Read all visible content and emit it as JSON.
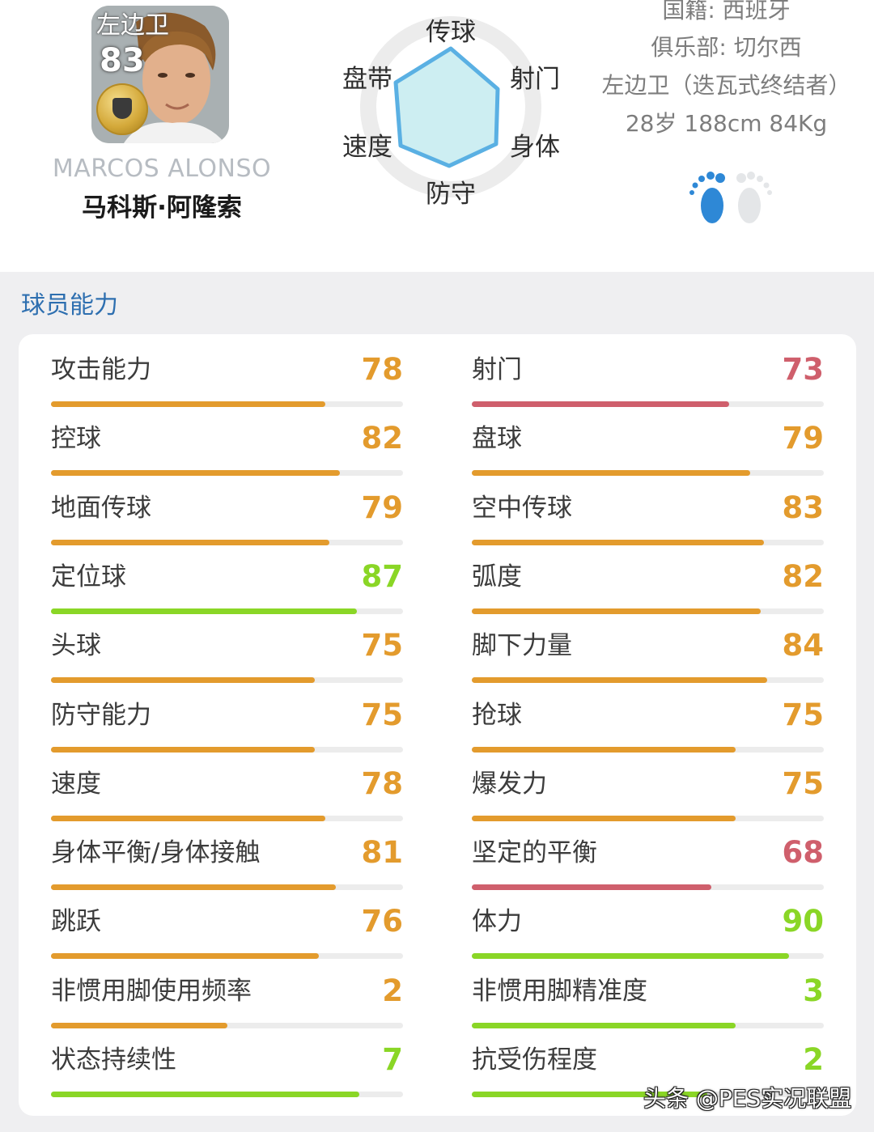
{
  "player": {
    "position": "左边卫",
    "rating": "83",
    "name_en": "MARCOS ALONSO",
    "name_cn": "马科斯·阿隆索"
  },
  "radar": {
    "labels": [
      "传球",
      "射门",
      "身体",
      "防守",
      "速度",
      "盘带"
    ],
    "fill_color": "#cdeef2",
    "stroke_color": "#5ab0e3"
  },
  "info": {
    "nationality": "国籍: 西班牙",
    "club": "俱乐部: 切尔西",
    "position_style": "左边卫（迭瓦式终结者）",
    "physical": "28岁 188cm 84Kg"
  },
  "section": {
    "title": "球员能力"
  },
  "colors": {
    "orange": "#e39b2d",
    "red": "#cf5f6c",
    "green": "#8ad626"
  },
  "stats_left": [
    {
      "label": "攻击能力",
      "value": "78",
      "fill": 0.78,
      "color": "#e39b2d"
    },
    {
      "label": "控球",
      "value": "82",
      "fill": 0.82,
      "color": "#e39b2d"
    },
    {
      "label": "地面传球",
      "value": "79",
      "fill": 0.79,
      "color": "#e39b2d"
    },
    {
      "label": "定位球",
      "value": "87",
      "fill": 0.87,
      "color": "#8ad626"
    },
    {
      "label": "头球",
      "value": "75",
      "fill": 0.75,
      "color": "#e39b2d"
    },
    {
      "label": "防守能力",
      "value": "75",
      "fill": 0.75,
      "color": "#e39b2d"
    },
    {
      "label": "速度",
      "value": "78",
      "fill": 0.78,
      "color": "#e39b2d"
    },
    {
      "label": "身体平衡/身体接触",
      "value": "81",
      "fill": 0.81,
      "color": "#e39b2d"
    },
    {
      "label": "跳跃",
      "value": "76",
      "fill": 0.76,
      "color": "#e39b2d"
    },
    {
      "label": "非惯用脚使用频率",
      "value": "2",
      "fill": 0.5,
      "color": "#e39b2d"
    },
    {
      "label": "状态持续性",
      "value": "7",
      "fill": 0.875,
      "color": "#8ad626"
    }
  ],
  "stats_right": [
    {
      "label": "射门",
      "value": "73",
      "fill": 0.73,
      "color": "#cf5f6c"
    },
    {
      "label": "盘球",
      "value": "79",
      "fill": 0.79,
      "color": "#e39b2d"
    },
    {
      "label": "空中传球",
      "value": "83",
      "fill": 0.83,
      "color": "#e39b2d"
    },
    {
      "label": "弧度",
      "value": "82",
      "fill": 0.82,
      "color": "#e39b2d"
    },
    {
      "label": "脚下力量",
      "value": "84",
      "fill": 0.84,
      "color": "#e39b2d"
    },
    {
      "label": "抢球",
      "value": "75",
      "fill": 0.75,
      "color": "#e39b2d"
    },
    {
      "label": "爆发力",
      "value": "75",
      "fill": 0.75,
      "color": "#e39b2d"
    },
    {
      "label": "坚定的平衡",
      "value": "68",
      "fill": 0.68,
      "color": "#cf5f6c"
    },
    {
      "label": "体力",
      "value": "90",
      "fill": 0.9,
      "color": "#8ad626"
    },
    {
      "label": "非惯用脚精准度",
      "value": "3",
      "fill": 0.75,
      "color": "#8ad626"
    },
    {
      "label": "抗受伤程度",
      "value": "2",
      "fill": 0.67,
      "color": "#8ad626"
    }
  ],
  "watermark": "头条 @PES实况联盟"
}
